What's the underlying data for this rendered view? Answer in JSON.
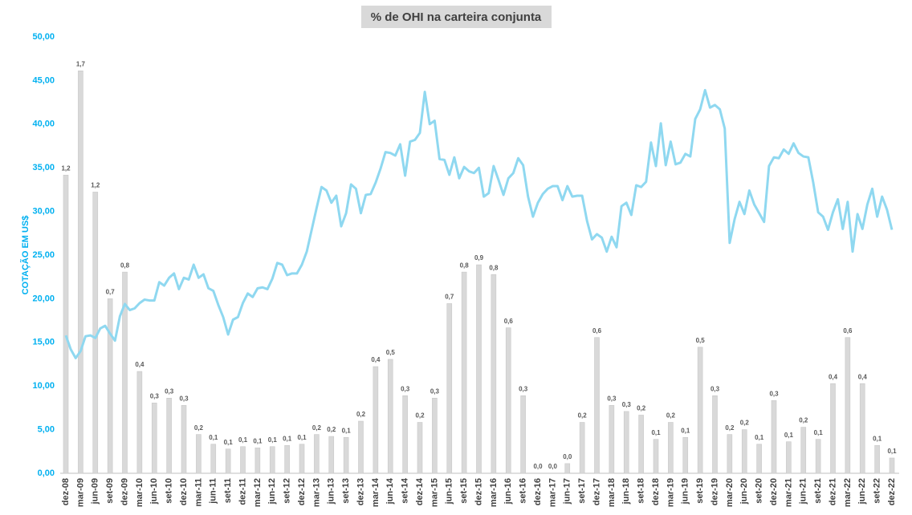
{
  "chart_data": {
    "type": "combo",
    "title": "% de OHI na carteira conjunta",
    "y_label": "COTAÇÃO EM US$",
    "categories": [
      "dez-08",
      null,
      null,
      "mar-09",
      null,
      null,
      "jun-09",
      null,
      null,
      "set-09",
      null,
      null,
      "dez-09",
      null,
      null,
      "mar-10",
      null,
      null,
      "jun-10",
      null,
      null,
      "set-10",
      null,
      null,
      "dez-10",
      null,
      null,
      "mar-11",
      null,
      null,
      "jun-11",
      null,
      null,
      "set-11",
      null,
      null,
      "dez-11",
      null,
      null,
      "mar-12",
      null,
      null,
      "jun-12",
      null,
      null,
      "set-12",
      null,
      null,
      "dez-12",
      null,
      null,
      "mar-13",
      null,
      null,
      "jun-13",
      null,
      null,
      "set-13",
      null,
      null,
      "dez-13",
      null,
      null,
      "mar-14",
      null,
      null,
      "jun-14",
      null,
      null,
      "set-14",
      null,
      null,
      "dez-14",
      null,
      null,
      "mar-15",
      null,
      null,
      "jun-15",
      null,
      null,
      "set-15",
      null,
      null,
      "dez-15",
      null,
      null,
      "mar-16",
      null,
      null,
      "jun-16",
      null,
      null,
      "set-16",
      null,
      null,
      "dez-16",
      null,
      null,
      "mar-17",
      null,
      null,
      "jun-17",
      null,
      null,
      "set-17",
      null,
      null,
      "dez-17",
      null,
      null,
      "mar-18",
      null,
      null,
      "jun-18",
      null,
      null,
      "set-18",
      null,
      null,
      "dez-18",
      null,
      null,
      "mar-19",
      null,
      null,
      "jun-19",
      null,
      null,
      "set-19",
      null,
      null,
      "dez-19",
      null,
      null,
      "mar-20",
      null,
      null,
      "jun-20",
      null,
      null,
      "set-20",
      null,
      null,
      "dez-20",
      null,
      null,
      "mar-21",
      null,
      null,
      "jun-21",
      null,
      null,
      "set-21",
      null,
      null,
      "dez-21",
      null,
      null,
      "mar-22",
      null,
      null,
      "jun-22",
      null,
      null,
      "set-22",
      null,
      null,
      "dez-22"
    ],
    "series": [
      {
        "type": "bar",
        "axis": "y2",
        "color": "#d9d9d9",
        "values": [
          1.23,
          null,
          null,
          1.66,
          null,
          null,
          1.16,
          null,
          null,
          0.72,
          null,
          null,
          0.83,
          null,
          null,
          0.42,
          null,
          null,
          0.29,
          null,
          null,
          0.31,
          null,
          null,
          0.28,
          null,
          null,
          0.16,
          null,
          null,
          0.12,
          null,
          null,
          0.1,
          null,
          null,
          0.11,
          null,
          null,
          0.105,
          null,
          null,
          0.11,
          null,
          null,
          0.115,
          null,
          null,
          0.12,
          null,
          null,
          0.16,
          null,
          null,
          0.152,
          null,
          null,
          0.148,
          null,
          null,
          0.215,
          null,
          null,
          0.44,
          null,
          null,
          0.47,
          null,
          null,
          0.32,
          null,
          null,
          0.21,
          null,
          null,
          0.31,
          null,
          null,
          0.7,
          null,
          null,
          0.83,
          null,
          null,
          0.86,
          null,
          null,
          0.82,
          null,
          null,
          0.6,
          null,
          null,
          0.32,
          null,
          null,
          0,
          null,
          null,
          0,
          null,
          null,
          0.04,
          null,
          null,
          0.21,
          null,
          null,
          0.56,
          null,
          null,
          0.28,
          null,
          null,
          0.255,
          null,
          null,
          0.24,
          null,
          null,
          0.14,
          null,
          null,
          0.21,
          null,
          null,
          0.148,
          null,
          null,
          0.52,
          null,
          null,
          0.32,
          null,
          null,
          0.16,
          null,
          null,
          0.18,
          null,
          null,
          0.12,
          null,
          null,
          0.3,
          null,
          null,
          0.13,
          null,
          null,
          0.19,
          null,
          null,
          0.14,
          null,
          null,
          0.37,
          null,
          null,
          0.56,
          null,
          null,
          0.37,
          null,
          null,
          0.115,
          null,
          null,
          0.063
        ],
        "value_labels": [
          "1,2",
          null,
          null,
          "1,7",
          null,
          null,
          "1,2",
          null,
          null,
          "0,7",
          null,
          null,
          "0,8",
          null,
          null,
          "0,4",
          null,
          null,
          "0,3",
          null,
          null,
          "0,3",
          null,
          null,
          "0,3",
          null,
          null,
          "0,2",
          null,
          null,
          "0,1",
          null,
          null,
          "0,1",
          null,
          null,
          "0,1",
          null,
          null,
          "0,1",
          null,
          null,
          "0,1",
          null,
          null,
          "0,1",
          null,
          null,
          "0,1",
          null,
          null,
          "0,2",
          null,
          null,
          "0,2",
          null,
          null,
          "0,1",
          null,
          null,
          "0,2",
          null,
          null,
          "0,4",
          null,
          null,
          "0,5",
          null,
          null,
          "0,3",
          null,
          null,
          "0,2",
          null,
          null,
          "0,3",
          null,
          null,
          "0,7",
          null,
          null,
          "0,8",
          null,
          null,
          "0,9",
          null,
          null,
          "0,8",
          null,
          null,
          "0,6",
          null,
          null,
          "0,3",
          null,
          null,
          "0,0",
          null,
          null,
          "0,0",
          null,
          null,
          "0,0",
          null,
          null,
          "0,2",
          null,
          null,
          "0,6",
          null,
          null,
          "0,3",
          null,
          null,
          "0,3",
          null,
          null,
          "0,2",
          null,
          null,
          "0,1",
          null,
          null,
          "0,2",
          null,
          null,
          "0,1",
          null,
          null,
          "0,5",
          null,
          null,
          "0,3",
          null,
          null,
          "0,2",
          null,
          null,
          "0,2",
          null,
          null,
          "0,1",
          null,
          null,
          "0,3",
          null,
          null,
          "0,1",
          null,
          null,
          "0,2",
          null,
          null,
          "0,1",
          null,
          null,
          "0,4",
          null,
          null,
          "0,6",
          null,
          null,
          "0,4",
          null,
          null,
          "0,1",
          null,
          null,
          "0,1"
        ]
      },
      {
        "type": "line",
        "color": "#8fd8f0",
        "values": [
          15.8,
          14.2,
          13.2,
          14.0,
          15.7,
          15.8,
          15.5,
          16.6,
          16.9,
          16.0,
          15.2,
          18.0,
          19.4,
          18.7,
          18.9,
          19.5,
          19.9,
          19.8,
          19.8,
          21.9,
          21.5,
          22.4,
          22.9,
          21.1,
          22.4,
          22.2,
          23.9,
          22.4,
          22.8,
          21.2,
          20.9,
          19.3,
          17.9,
          15.9,
          17.6,
          17.9,
          19.5,
          20.6,
          20.2,
          21.2,
          21.3,
          21.1,
          22.3,
          24.1,
          23.9,
          22.7,
          22.9,
          22.9,
          23.9,
          25.4,
          27.9,
          30.4,
          32.8,
          32.4,
          31.0,
          31.8,
          28.3,
          29.8,
          33.1,
          32.6,
          29.8,
          31.9,
          32.0,
          33.3,
          34.9,
          36.8,
          36.7,
          36.4,
          37.7,
          34.1,
          38.0,
          38.2,
          39.0,
          43.7,
          40.0,
          40.4,
          36.0,
          35.9,
          34.2,
          36.2,
          33.8,
          35.1,
          34.6,
          34.4,
          35.0,
          31.7,
          32.1,
          35.2,
          33.6,
          31.9,
          33.8,
          34.4,
          36.1,
          35.3,
          31.7,
          29.4,
          31.0,
          32.0,
          32.6,
          32.9,
          32.9,
          31.3,
          32.9,
          31.7,
          31.8,
          31.8,
          28.9,
          26.8,
          27.4,
          27.0,
          25.4,
          27.1,
          25.9,
          30.6,
          31.0,
          29.6,
          33.0,
          32.8,
          33.4,
          37.9,
          35.2,
          40.1,
          35.3,
          38.0,
          35.4,
          35.6,
          36.6,
          36.3,
          40.6,
          41.7,
          43.9,
          41.9,
          42.2,
          41.7,
          39.5,
          26.4,
          29.1,
          31.1,
          29.7,
          32.4,
          30.8,
          29.8,
          28.8,
          35.2,
          36.2,
          36.1,
          37.1,
          36.6,
          37.8,
          36.7,
          36.3,
          36.2,
          33.3,
          29.9,
          29.4,
          27.9,
          29.9,
          31.4,
          28.0,
          31.1,
          25.4,
          29.7,
          28.0,
          30.8,
          32.6,
          29.4,
          31.7,
          30.2,
          27.9
        ]
      }
    ],
    "ylim": [
      0,
      50
    ],
    "yticks": [
      {
        "value": 0,
        "label": "0,00"
      },
      {
        "value": 5,
        "label": "5,00"
      },
      {
        "value": 10,
        "label": "10,00"
      },
      {
        "value": 15,
        "label": "15,00"
      },
      {
        "value": 20,
        "label": "20,00"
      },
      {
        "value": 25,
        "label": "25,00"
      },
      {
        "value": 30,
        "label": "30,00"
      },
      {
        "value": 35,
        "label": "35,00"
      },
      {
        "value": 40,
        "label": "40,00"
      },
      {
        "value": 45,
        "label": "45,00"
      },
      {
        "value": 50,
        "label": "50,00"
      }
    ],
    "y2lim": [
      0,
      1.8
    ],
    "grid": false
  }
}
